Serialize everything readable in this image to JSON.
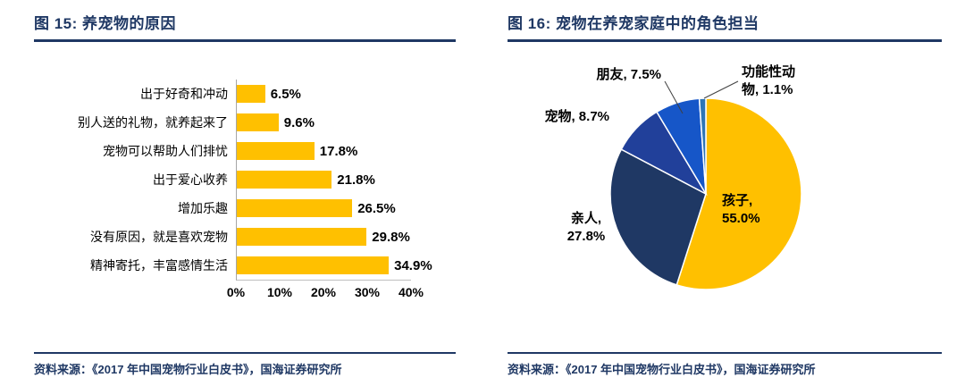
{
  "figure15": {
    "title": "图 15:  养宠物的原因",
    "source": "资料来源：《2017 年中国宠物行业白皮书》，国海证券研究所"
  },
  "figure16": {
    "title": "图 16:  宠物在养宠家庭中的角色担当",
    "source": "资料来源：《2017 年中国宠物行业白皮书》，国海证券研究所"
  },
  "colors": {
    "accent_navy": "#1F3864",
    "bar_gold": "#FFC000"
  },
  "chart_data": [
    {
      "type": "bar",
      "orientation": "horizontal",
      "title": "养宠物的原因",
      "categories": [
        "出于好奇和冲动",
        "别人送的礼物，就养起来了",
        "宠物可以帮助人们排忧",
        "出于爱心收养",
        "增加乐趣",
        "没有原因，就是喜欢宠物",
        "精神寄托，丰富感情生活"
      ],
      "values": [
        6.5,
        9.6,
        17.8,
        21.8,
        26.5,
        29.8,
        34.9
      ],
      "value_labels": [
        "6.5%",
        "9.6%",
        "17.8%",
        "21.8%",
        "26.5%",
        "29.8%",
        "34.9%"
      ],
      "xlim": [
        0,
        40
      ],
      "x_ticks": [
        "0%",
        "10%",
        "20%",
        "30%",
        "40%"
      ],
      "bar_color": "#FFC000",
      "grid": false,
      "legend": "none"
    },
    {
      "type": "pie",
      "title": "宠物在养宠家庭中的角色担当",
      "start_angle_deg": 0,
      "direction": "clockwise",
      "slices": [
        {
          "label": "孩子",
          "value": 55.0,
          "lines": [
            "孩子,",
            "55.0%"
          ],
          "color": "#FFC000"
        },
        {
          "label": "亲人",
          "value": 27.8,
          "lines": [
            "亲人,",
            "27.8%"
          ],
          "color": "#1F3864"
        },
        {
          "label": "宠物",
          "value": 8.7,
          "lines": [
            "宠物, 8.7%"
          ],
          "color": "#21409A"
        },
        {
          "label": "朋友",
          "value": 7.5,
          "lines": [
            "朋友, 7.5%"
          ],
          "color": "#1656C8"
        },
        {
          "label": "功能性动物",
          "value": 1.1,
          "lines": [
            "功能性动",
            "物, 1.1%"
          ],
          "color": "#2E75B6"
        }
      ]
    }
  ]
}
